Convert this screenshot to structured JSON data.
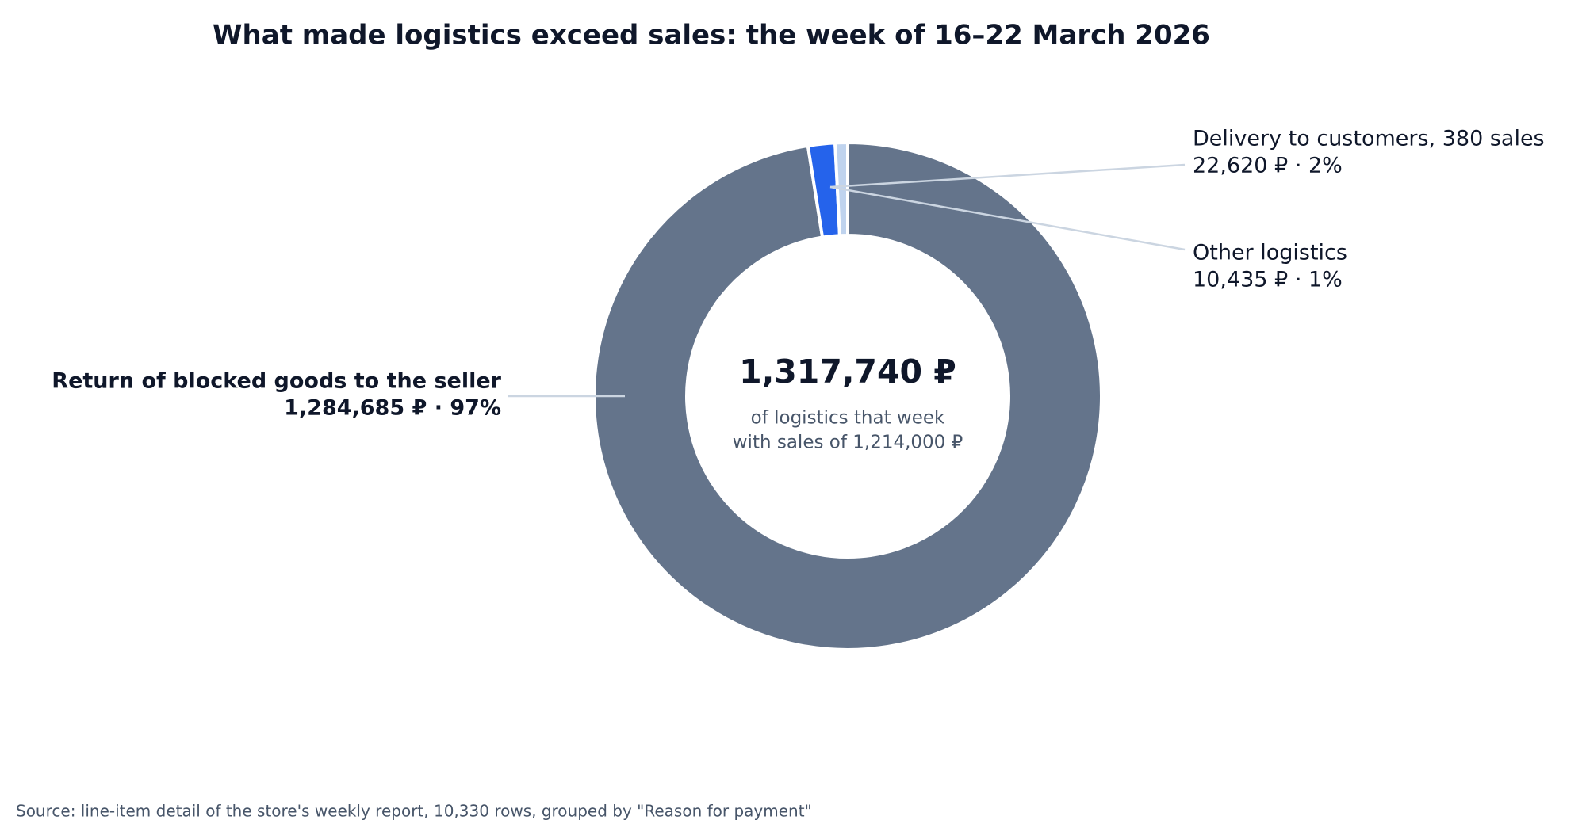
{
  "chart_data": {
    "type": "donut",
    "title": "What made logistics exceed sales: the week of 16–22 March 2026",
    "categories": [
      "Return of blocked goods to the seller",
      "Delivery to customers, 380 sales",
      "Other logistics"
    ],
    "values": [
      1284685,
      22620,
      10435
    ],
    "value_labels": [
      "1,284,685 ₽ · 97%",
      "22,620 ₽ · 2%",
      "10,435 ₽ · 1%"
    ],
    "colors": [
      "#64748b",
      "#2563eb",
      "#bfd3ee"
    ],
    "center_label": "1,317,740 ₽",
    "center_sublabel": [
      "of logistics that week",
      "with sales of 1,214,000 ₽"
    ],
    "source": "Source: line-item detail of the store's weekly report, 10,330 rows, grouped by \"Reason for payment\""
  }
}
